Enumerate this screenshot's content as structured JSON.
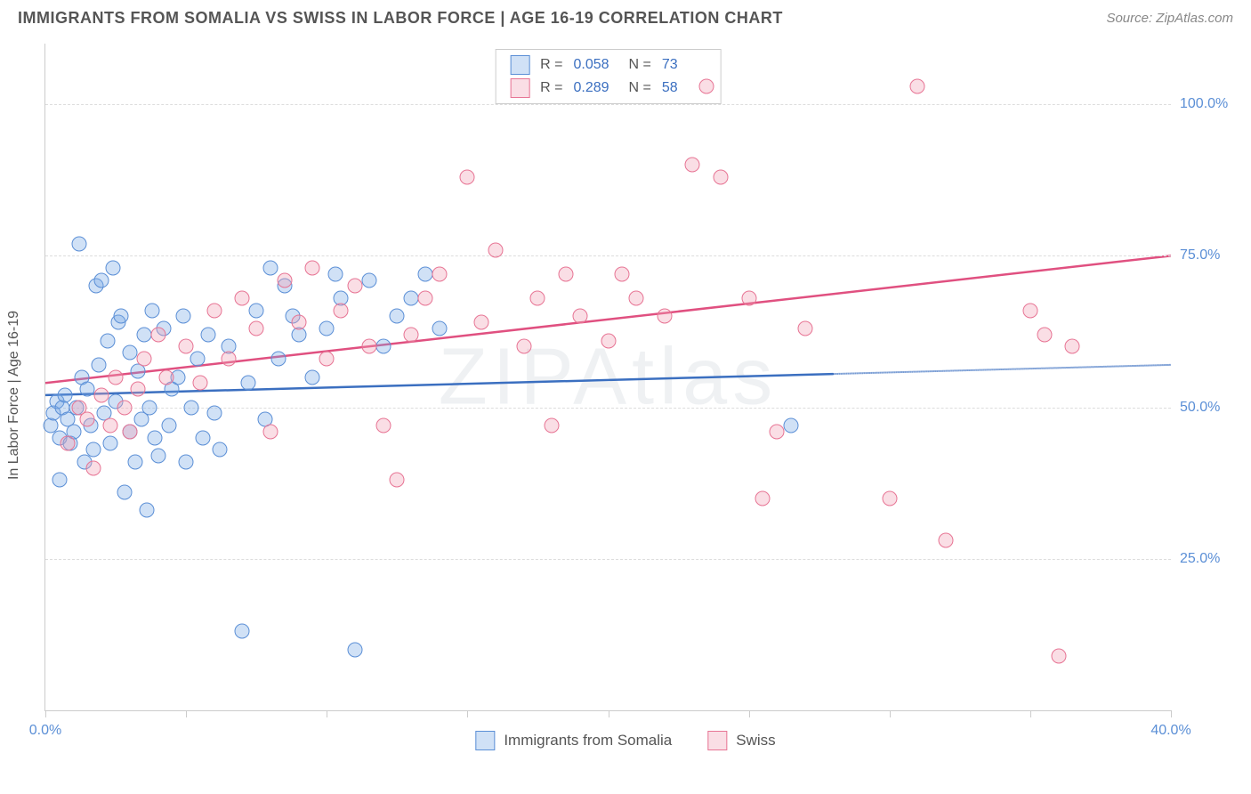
{
  "title": "IMMIGRANTS FROM SOMALIA VS SWISS IN LABOR FORCE | AGE 16-19 CORRELATION CHART",
  "source_label": "Source: ZipAtlas.com",
  "y_axis_label": "In Labor Force | Age 16-19",
  "watermark": "ZIPAtlas",
  "chart": {
    "type": "scatter",
    "xlim": [
      0,
      40
    ],
    "ylim": [
      0,
      110
    ],
    "x_ticks": [
      0,
      5,
      10,
      15,
      20,
      25,
      30,
      35,
      40
    ],
    "x_tick_labels": {
      "0": "0.0%",
      "40": "40.0%"
    },
    "y_ticks": [
      25,
      50,
      75,
      100
    ],
    "y_tick_labels": {
      "25": "25.0%",
      "50": "50.0%",
      "75": "75.0%",
      "100": "100.0%"
    },
    "background_color": "#ffffff",
    "grid_color": "#dddddd",
    "axis_color": "#cccccc",
    "tick_label_color": "#5b8fd6",
    "marker_size": 17,
    "marker_opacity": 0.35,
    "series": [
      {
        "name": "Immigrants from Somalia",
        "color_fill": "rgba(120,170,230,0.35)",
        "color_stroke": "#5b8fd6",
        "R": "0.058",
        "N": "73",
        "trend": {
          "x0": 0,
          "y0": 52,
          "x1_solid": 28,
          "x1": 40,
          "y1": 57,
          "color": "#3b6fc0"
        },
        "points": [
          [
            0.2,
            47
          ],
          [
            0.3,
            49
          ],
          [
            0.4,
            51
          ],
          [
            0.5,
            45
          ],
          [
            0.6,
            50
          ],
          [
            0.7,
            52
          ],
          [
            0.8,
            48
          ],
          [
            0.9,
            44
          ],
          [
            1.0,
            46
          ],
          [
            1.1,
            50
          ],
          [
            1.2,
            77
          ],
          [
            1.3,
            55
          ],
          [
            1.4,
            41
          ],
          [
            1.5,
            53
          ],
          [
            1.6,
            47
          ],
          [
            1.7,
            43
          ],
          [
            1.8,
            70
          ],
          [
            1.9,
            57
          ],
          [
            2.0,
            71
          ],
          [
            2.1,
            49
          ],
          [
            2.2,
            61
          ],
          [
            2.3,
            44
          ],
          [
            2.4,
            73
          ],
          [
            2.5,
            51
          ],
          [
            2.6,
            64
          ],
          [
            2.7,
            65
          ],
          [
            2.8,
            36
          ],
          [
            3.0,
            59
          ],
          [
            3.2,
            41
          ],
          [
            3.3,
            56
          ],
          [
            3.4,
            48
          ],
          [
            3.5,
            62
          ],
          [
            3.6,
            33
          ],
          [
            3.7,
            50
          ],
          [
            3.8,
            66
          ],
          [
            3.9,
            45
          ],
          [
            4.0,
            42
          ],
          [
            4.2,
            63
          ],
          [
            4.4,
            47
          ],
          [
            4.5,
            53
          ],
          [
            4.7,
            55
          ],
          [
            4.9,
            65
          ],
          [
            5.0,
            41
          ],
          [
            5.2,
            50
          ],
          [
            5.4,
            58
          ],
          [
            5.6,
            45
          ],
          [
            5.8,
            62
          ],
          [
            6.0,
            49
          ],
          [
            6.2,
            43
          ],
          [
            6.5,
            60
          ],
          [
            7.0,
            13
          ],
          [
            7.2,
            54
          ],
          [
            7.5,
            66
          ],
          [
            7.8,
            48
          ],
          [
            8.0,
            73
          ],
          [
            8.3,
            58
          ],
          [
            8.5,
            70
          ],
          [
            8.8,
            65
          ],
          [
            9.0,
            62
          ],
          [
            9.5,
            55
          ],
          [
            10.0,
            63
          ],
          [
            10.3,
            72
          ],
          [
            10.5,
            68
          ],
          [
            11.0,
            10
          ],
          [
            11.5,
            71
          ],
          [
            12.0,
            60
          ],
          [
            12.5,
            65
          ],
          [
            13.0,
            68
          ],
          [
            13.5,
            72
          ],
          [
            14.0,
            63
          ],
          [
            26.5,
            47
          ],
          [
            0.5,
            38
          ],
          [
            3.0,
            46
          ]
        ]
      },
      {
        "name": "Swiss",
        "color_fill": "rgba(240,160,180,0.35)",
        "color_stroke": "#e77494",
        "R": "0.289",
        "N": "58",
        "trend": {
          "x0": 0,
          "y0": 54,
          "x1_solid": 40,
          "x1": 40,
          "y1": 75,
          "color": "#e05080"
        },
        "points": [
          [
            0.8,
            44
          ],
          [
            1.2,
            50
          ],
          [
            1.5,
            48
          ],
          [
            1.7,
            40
          ],
          [
            2.0,
            52
          ],
          [
            2.3,
            47
          ],
          [
            2.5,
            55
          ],
          [
            2.8,
            50
          ],
          [
            3.0,
            46
          ],
          [
            3.3,
            53
          ],
          [
            3.5,
            58
          ],
          [
            4.0,
            62
          ],
          [
            4.3,
            55
          ],
          [
            5.0,
            60
          ],
          [
            5.5,
            54
          ],
          [
            6.0,
            66
          ],
          [
            6.5,
            58
          ],
          [
            7.0,
            68
          ],
          [
            7.5,
            63
          ],
          [
            8.0,
            46
          ],
          [
            8.5,
            71
          ],
          [
            9.0,
            64
          ],
          [
            9.5,
            73
          ],
          [
            10.0,
            58
          ],
          [
            10.5,
            66
          ],
          [
            11.0,
            70
          ],
          [
            11.5,
            60
          ],
          [
            12.0,
            47
          ],
          [
            12.5,
            38
          ],
          [
            13.0,
            62
          ],
          [
            13.5,
            68
          ],
          [
            14.0,
            72
          ],
          [
            15.0,
            88
          ],
          [
            15.5,
            64
          ],
          [
            16.0,
            76
          ],
          [
            17.0,
            60
          ],
          [
            17.5,
            68
          ],
          [
            18.0,
            47
          ],
          [
            18.5,
            72
          ],
          [
            19.0,
            65
          ],
          [
            20.0,
            61
          ],
          [
            20.5,
            72
          ],
          [
            21.0,
            68
          ],
          [
            22.0,
            65
          ],
          [
            23.0,
            90
          ],
          [
            23.5,
            103
          ],
          [
            24.0,
            88
          ],
          [
            25.0,
            68
          ],
          [
            25.5,
            35
          ],
          [
            26.0,
            46
          ],
          [
            27.0,
            63
          ],
          [
            30.0,
            35
          ],
          [
            31.0,
            103
          ],
          [
            32.0,
            28
          ],
          [
            35.0,
            66
          ],
          [
            36.0,
            9
          ],
          [
            35.5,
            62
          ],
          [
            36.5,
            60
          ]
        ]
      }
    ]
  },
  "legend_top": {
    "rows": [
      {
        "swatch_fill": "rgba(120,170,230,0.35)",
        "swatch_stroke": "#5b8fd6",
        "R": "0.058",
        "N": "73"
      },
      {
        "swatch_fill": "rgba(240,160,180,0.35)",
        "swatch_stroke": "#e77494",
        "R": "0.289",
        "N": "58"
      }
    ]
  },
  "legend_bottom": {
    "items": [
      {
        "label": "Immigrants from Somalia",
        "swatch_fill": "rgba(120,170,230,0.35)",
        "swatch_stroke": "#5b8fd6"
      },
      {
        "label": "Swiss",
        "swatch_fill": "rgba(240,160,180,0.35)",
        "swatch_stroke": "#e77494"
      }
    ]
  }
}
